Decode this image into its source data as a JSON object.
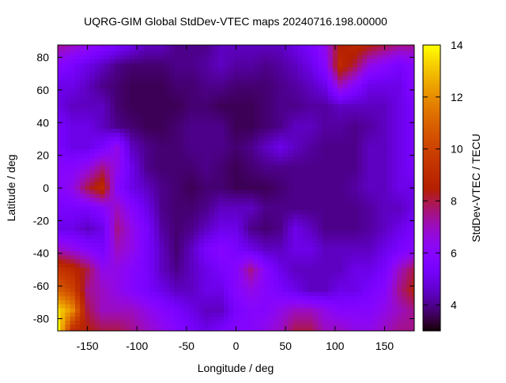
{
  "chart_data": {
    "type": "heatmap",
    "title": "UQRG-GIM Global StdDev-VTEC maps 20240716.198.00000",
    "xlabel": "Longitude / deg",
    "ylabel": "Latitude / deg",
    "cblabel": "StdDev-VTEC / TECU",
    "xlim": [
      -180,
      180
    ],
    "ylim": [
      -87.5,
      87.5
    ],
    "cbrange": [
      3,
      14
    ],
    "xticks": [
      -150,
      -100,
      -50,
      0,
      50,
      100,
      150
    ],
    "yticks": [
      -80,
      -60,
      -40,
      -20,
      0,
      20,
      40,
      60,
      80
    ],
    "cbticks": [
      4,
      6,
      8,
      10,
      12,
      14
    ],
    "palette": "black-blue-purple-red-orange-yellow",
    "overlay": "coastlines",
    "coastline_color": "#40e0d0",
    "lon": [
      -180,
      -165,
      -150,
      -135,
      -120,
      -105,
      -90,
      -75,
      -60,
      -45,
      -30,
      -15,
      0,
      15,
      30,
      45,
      60,
      75,
      90,
      105,
      120,
      135,
      150,
      165,
      180
    ],
    "lat": [
      87.5,
      75,
      62.5,
      50,
      37.5,
      25,
      12.5,
      0,
      -12.5,
      -25,
      -37.5,
      -50,
      -62.5,
      -75,
      -87.5
    ],
    "values": [
      [
        7.5,
        7,
        6.5,
        6,
        5.5,
        5,
        4.5,
        4.5,
        4,
        4,
        4,
        4.5,
        4.5,
        4.5,
        4.5,
        4.5,
        5,
        5.5,
        6.5,
        8.5,
        9,
        8.5,
        8,
        7.5,
        7.5
      ],
      [
        6,
        5.5,
        5,
        4.5,
        4,
        3.8,
        3.8,
        3.8,
        4,
        4,
        4.2,
        4.5,
        4.2,
        4.2,
        4,
        4.2,
        4.5,
        5,
        6,
        9,
        8,
        6.5,
        6,
        5.5,
        6
      ],
      [
        5,
        5,
        4.5,
        4,
        3.8,
        3.6,
        3.6,
        3.6,
        3.8,
        3.8,
        4,
        4,
        3.8,
        3.8,
        3.8,
        4,
        4.2,
        4.5,
        5,
        7,
        6,
        5,
        5,
        5,
        6
      ],
      [
        5,
        4.5,
        4.5,
        4.5,
        3.8,
        3.6,
        3.6,
        3.6,
        3.6,
        3.8,
        3.8,
        3.6,
        3.6,
        3.6,
        3.8,
        4,
        4,
        4.2,
        4.2,
        4.5,
        4.5,
        4.5,
        4.5,
        5,
        5.5
      ],
      [
        5.5,
        5,
        5,
        4.5,
        4,
        3.8,
        3.6,
        3.6,
        3.8,
        4,
        4,
        4,
        3.6,
        3.6,
        3.8,
        4,
        4.5,
        4.5,
        4.2,
        4.2,
        4,
        4.2,
        4.5,
        5,
        5.5
      ],
      [
        5.5,
        5,
        5,
        5.5,
        6.5,
        4.5,
        4,
        3.8,
        3.8,
        4,
        4,
        4,
        3.8,
        4,
        4.5,
        5,
        4.5,
        4.2,
        4,
        4,
        4,
        4.5,
        4.5,
        5,
        5.5
      ],
      [
        6,
        6,
        6.5,
        7.5,
        6.5,
        5,
        4,
        3.8,
        3.8,
        3.8,
        4,
        3.8,
        3.6,
        3.8,
        4,
        4,
        4,
        4,
        4,
        4,
        4,
        4.5,
        4.5,
        5,
        5.5
      ],
      [
        6,
        6.5,
        8,
        9,
        6,
        5,
        4.5,
        4,
        3.8,
        3.6,
        3.8,
        3.8,
        3.6,
        3.6,
        3.6,
        3.8,
        4,
        4,
        4,
        4,
        4.2,
        4.5,
        4.5,
        5,
        5
      ],
      [
        5.5,
        5.5,
        5.5,
        6,
        7,
        6,
        5,
        4,
        3.8,
        3.8,
        4,
        4.5,
        4.5,
        4.5,
        4,
        4,
        4,
        4,
        4,
        4,
        4,
        4.2,
        4.5,
        4.5,
        5
      ],
      [
        5,
        5,
        4.5,
        5,
        7.5,
        6.5,
        5.5,
        4.2,
        3.8,
        4,
        4.5,
        5,
        5,
        4,
        3.8,
        4,
        5,
        4.5,
        4,
        4,
        4,
        4.2,
        4.5,
        5,
        5.5
      ],
      [
        7,
        6.5,
        6,
        5.5,
        7,
        6.5,
        5.5,
        4.5,
        3.8,
        4.5,
        5.5,
        6,
        5.5,
        5,
        4.5,
        4.5,
        5,
        5,
        4.5,
        4.5,
        4.5,
        4.5,
        5,
        5.5,
        6
      ],
      [
        9.5,
        9,
        8,
        6.5,
        6.5,
        6,
        5.5,
        4.5,
        4,
        4.5,
        5,
        5.5,
        6,
        7.5,
        6,
        5,
        4.5,
        4.5,
        4.5,
        4.5,
        5,
        5,
        5.5,
        7,
        8
      ],
      [
        11,
        10,
        7.5,
        7,
        6.5,
        6,
        5.5,
        5,
        4.5,
        4.5,
        5,
        5,
        6,
        6.5,
        6,
        5.5,
        5,
        4.5,
        4.5,
        5,
        5,
        5.5,
        6,
        7.5,
        8.5
      ],
      [
        13.5,
        12,
        8,
        7,
        7,
        7,
        6.5,
        6,
        5.5,
        5,
        4.5,
        4.5,
        5.5,
        6,
        6,
        6.5,
        7,
        7,
        6.5,
        6,
        6,
        6,
        6.5,
        7,
        7.5
      ],
      [
        14,
        9,
        8.5,
        8,
        8,
        7.5,
        7,
        6.5,
        6,
        5.5,
        5,
        5.5,
        6,
        6,
        6.5,
        7,
        8,
        8,
        7,
        7,
        6.5,
        6.5,
        7,
        7.5,
        7.5
      ]
    ]
  }
}
